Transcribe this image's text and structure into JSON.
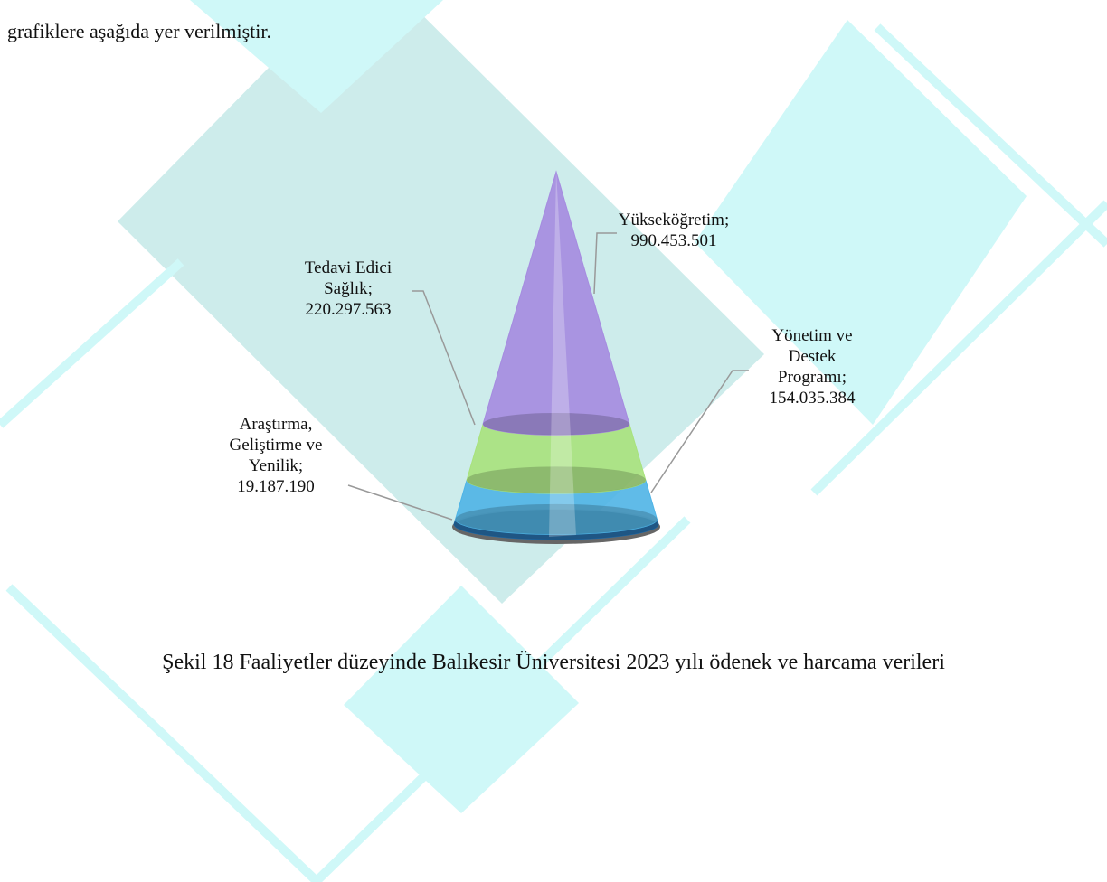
{
  "body_text": "grafiklere aşağıda yer verilmiştir.",
  "chart_data": {
    "type": "cone",
    "categories": [
      "Araştırma, Geliştirme ve Yenilik",
      "Yönetim ve Destek Programı",
      "Tedavi Edici Sağlık",
      "Yükseköğretim"
    ],
    "values": [
      19187190,
      154035384,
      220297563,
      990453501
    ],
    "value_labels": [
      "19.187.190",
      "154.035.384",
      "220.297.563",
      "990.453.501"
    ],
    "label_separator": ";",
    "colors": [
      "#1f6aa8",
      "#4fb4e6",
      "#a8e27c",
      "#a58be0"
    ]
  },
  "caption": "Şekil 18 Faaliyetler düzeyinde Balıkesir Üniversitesi 2023 yılı ödenek ve harcama verileri"
}
